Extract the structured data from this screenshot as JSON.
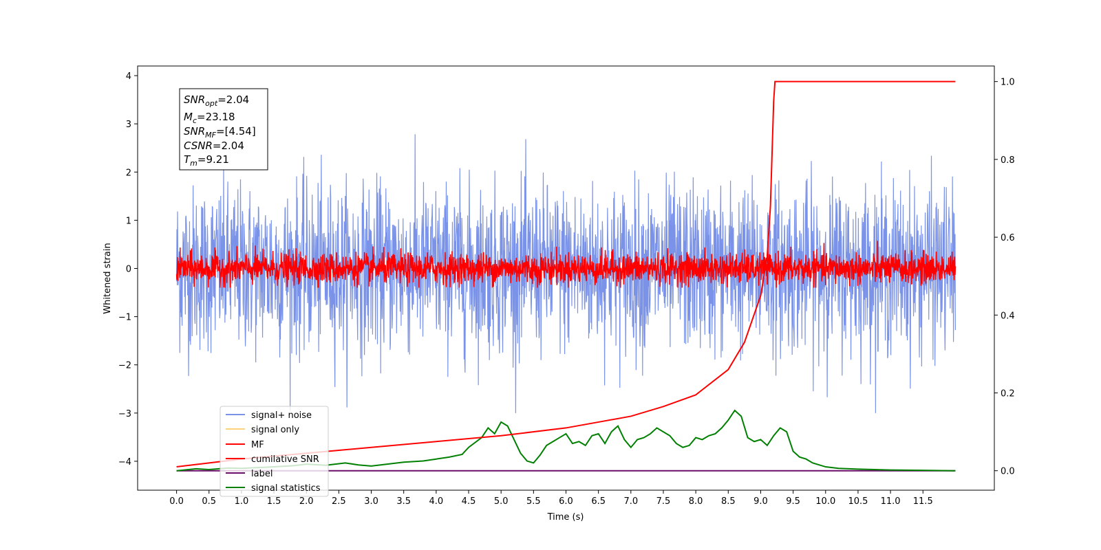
{
  "chart_data": {
    "type": "line",
    "xlabel": "Time (s)",
    "ylabel": "Whitened strain",
    "xlim": [
      -0.6,
      12.6
    ],
    "ylim": [
      -4.6,
      4.2
    ],
    "y2lim": [
      -0.05,
      1.04
    ],
    "x_ticks": [
      "0.0",
      "0.5",
      "1.0",
      "1.5",
      "2.0",
      "2.5",
      "3.0",
      "3.5",
      "4.0",
      "4.5",
      "5.0",
      "5.5",
      "6.0",
      "6.5",
      "7.0",
      "7.5",
      "8.0",
      "8.5",
      "9.0",
      "9.5",
      "10.0",
      "10.5",
      "11.0",
      "11.5"
    ],
    "y_ticks": [
      "4",
      "3",
      "2",
      "1",
      "0",
      "−1",
      "−2",
      "−3",
      "−4"
    ],
    "y2_ticks": [
      "1.0",
      "0.8",
      "0.6",
      "0.4",
      "0.2",
      "0.0"
    ],
    "info_box": {
      "snr_opt": {
        "sym": "SNR",
        "sub": "opt",
        "val": "=2.04"
      },
      "mc": {
        "sym": "M",
        "sub": "c",
        "val": "=23.18"
      },
      "snr_mf": {
        "sym": "SNR",
        "sub": "MF",
        "val": "=[4.54]"
      },
      "csnr": {
        "sym": "CSNR",
        "sub": "",
        "val": "=2.04"
      },
      "tm": {
        "sym": "T",
        "sub": "m",
        "val": "=9.21"
      }
    },
    "legend": {
      "placement": "lower-left",
      "entries": [
        {
          "label": "signal+ noise",
          "color": "#7a93e8"
        },
        {
          "label": "signal only",
          "color": "#fdd27a"
        },
        {
          "label": "MF",
          "color": "#ff0000"
        },
        {
          "label": "cumilative SNR",
          "color": "#ff0000"
        },
        {
          "label": "label",
          "color": "#6a0d6a"
        },
        {
          "label": "signal statistics",
          "color": "#008000"
        }
      ]
    },
    "series": [
      {
        "name": "signal+ noise",
        "axis": "left",
        "color": "#7a93e8",
        "description": "whitened noise, amplitude about ±2 with peaks to about ±3, spanning 0.0 to 12.0 s"
      },
      {
        "name": "MF",
        "axis": "left",
        "color": "#ff0000",
        "description": "matched filter output, about ±0.4 around 0, spanning 0.0 to 12.0 s"
      },
      {
        "name": "cumilative SNR",
        "axis": "right",
        "color": "#ff0000",
        "x": [
          0.0,
          0.5,
          1.0,
          2.0,
          3.0,
          4.0,
          5.0,
          6.0,
          6.5,
          7.0,
          7.5,
          8.0,
          8.5,
          8.75,
          9.0,
          9.1,
          9.15,
          9.2,
          9.22,
          9.3,
          10.0,
          11.0,
          12.0
        ],
        "values": [
          0.01,
          0.02,
          0.03,
          0.045,
          0.06,
          0.075,
          0.09,
          0.11,
          0.125,
          0.14,
          0.165,
          0.195,
          0.26,
          0.33,
          0.45,
          0.55,
          0.68,
          0.95,
          1.0,
          1.0,
          1.0,
          1.0,
          1.0
        ]
      },
      {
        "name": "label",
        "axis": "right",
        "color": "#6a0d6a",
        "x": [
          0.0,
          12.0
        ],
        "values": [
          0.0,
          0.0
        ]
      },
      {
        "name": "signal statistics",
        "axis": "right",
        "color": "#008000",
        "x": [
          0.0,
          0.3,
          0.5,
          0.8,
          1.0,
          1.5,
          1.8,
          2.0,
          2.3,
          2.6,
          2.8,
          3.0,
          3.3,
          3.5,
          3.8,
          4.0,
          4.2,
          4.4,
          4.5,
          4.7,
          4.8,
          4.9,
          5.0,
          5.1,
          5.2,
          5.3,
          5.4,
          5.5,
          5.6,
          5.7,
          5.8,
          5.9,
          6.0,
          6.1,
          6.2,
          6.3,
          6.4,
          6.5,
          6.6,
          6.7,
          6.8,
          6.9,
          7.0,
          7.1,
          7.2,
          7.3,
          7.4,
          7.5,
          7.6,
          7.7,
          7.8,
          7.9,
          8.0,
          8.1,
          8.2,
          8.3,
          8.4,
          8.5,
          8.6,
          8.7,
          8.8,
          8.9,
          9.0,
          9.1,
          9.2,
          9.3,
          9.4,
          9.5,
          9.6,
          9.7,
          9.8,
          9.9,
          10.0,
          10.2,
          10.5,
          11.0,
          11.5,
          12.0
        ],
        "values": [
          0.0,
          0.005,
          0.003,
          0.007,
          0.006,
          0.01,
          0.013,
          0.017,
          0.014,
          0.02,
          0.015,
          0.012,
          0.018,
          0.022,
          0.025,
          0.03,
          0.035,
          0.042,
          0.06,
          0.085,
          0.11,
          0.095,
          0.125,
          0.115,
          0.08,
          0.045,
          0.025,
          0.02,
          0.04,
          0.065,
          0.075,
          0.085,
          0.095,
          0.07,
          0.075,
          0.065,
          0.09,
          0.095,
          0.07,
          0.1,
          0.115,
          0.08,
          0.06,
          0.08,
          0.085,
          0.095,
          0.11,
          0.1,
          0.09,
          0.07,
          0.06,
          0.065,
          0.085,
          0.08,
          0.09,
          0.095,
          0.11,
          0.13,
          0.155,
          0.14,
          0.085,
          0.075,
          0.08,
          0.065,
          0.09,
          0.11,
          0.1,
          0.05,
          0.035,
          0.03,
          0.02,
          0.015,
          0.01,
          0.006,
          0.004,
          0.002,
          0.001,
          0.0
        ]
      }
    ]
  }
}
